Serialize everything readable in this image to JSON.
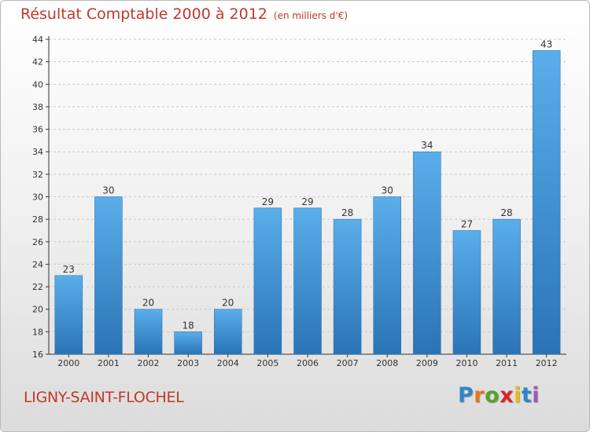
{
  "chart_data": {
    "type": "bar",
    "title": "Résultat Comptable 2000 à 2012",
    "subtitle": "(en milliers d'€)",
    "categories": [
      "2000",
      "2001",
      "2002",
      "2003",
      "2004",
      "2005",
      "2006",
      "2007",
      "2008",
      "2009",
      "2010",
      "2011",
      "2012"
    ],
    "values": [
      23,
      30,
      20,
      18,
      20,
      29,
      29,
      28,
      30,
      34,
      27,
      28,
      43
    ],
    "ylim": [
      16,
      44
    ],
    "yticks": [
      16,
      18,
      20,
      22,
      24,
      26,
      28,
      30,
      32,
      34,
      36,
      38,
      40,
      42,
      44
    ],
    "grid": true,
    "bar_color": "#3d8fd6",
    "xlabel": "",
    "ylabel": ""
  },
  "footer": {
    "place": "LIGNY-SAINT-FLOCHEL",
    "brand_letters": [
      "P",
      "r",
      "o",
      "x",
      "i",
      "t",
      "i"
    ],
    "brand_colors": [
      "#2f86c6",
      "#e8731f",
      "#5aa02c",
      "#d6252a",
      "#e8b91c",
      "#2f86c6",
      "#9b59b6"
    ]
  },
  "colors": {
    "title": "#c0392b",
    "grid": "#c8c8c8",
    "axis": "#333333"
  }
}
